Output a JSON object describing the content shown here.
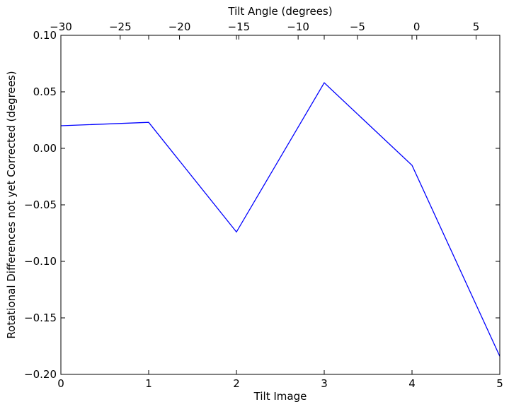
{
  "chart_data": {
    "type": "line",
    "xlabel": "Tilt Image",
    "ylabel": "Rotational Differences not yet Corrected (degrees)",
    "top_xlabel": "Tilt Angle (degrees)",
    "xlim": [
      0,
      5
    ],
    "ylim": [
      -0.2,
      0.1
    ],
    "top_xlim": [
      -30,
      7
    ],
    "x_ticks": [
      0,
      1,
      2,
      3,
      4,
      5
    ],
    "x_tick_labels": [
      "0",
      "1",
      "2",
      "3",
      "4",
      "5"
    ],
    "y_ticks": [
      0.1,
      0.05,
      0.0,
      -0.05,
      -0.1,
      -0.15,
      -0.2
    ],
    "y_tick_labels": [
      "0.10",
      "0.05",
      "0.00",
      "−0.05",
      "−0.10",
      "−0.15",
      "−0.20"
    ],
    "top_x_ticks": [
      -30,
      -25,
      -20,
      -15,
      -10,
      -5,
      0,
      5
    ],
    "top_x_tick_labels": [
      "−30",
      "−25",
      "−20",
      "−15",
      "−10",
      "−5",
      "0",
      "5"
    ],
    "grid": false,
    "series": [
      {
        "color": "#0000ff",
        "x": [
          0,
          1,
          2,
          3,
          4,
          5
        ],
        "y": [
          0.02,
          0.023,
          -0.074,
          0.058,
          -0.015,
          -0.184
        ]
      }
    ]
  }
}
